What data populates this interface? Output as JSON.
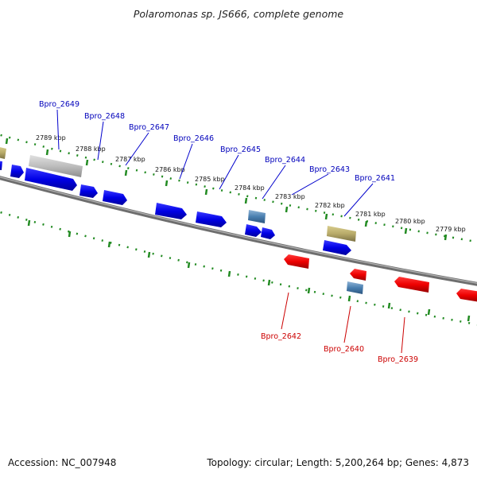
{
  "title": "Polaromonas sp. JS666, complete genome",
  "footer": {
    "accession": "Accession: NC_007948",
    "topology": "Topology: circular; Length: 5,200,264 bp; Genes: 4,873"
  },
  "colors": {
    "forward_gene": "#0000dd",
    "reverse_gene": "#ee0000",
    "backbone": "#777777",
    "ticks": "#228b22",
    "khaki_feature": "#b8ab6a",
    "gray_feature": "#bbbbbb",
    "steel_feature": "#4a7fb0",
    "forward_label": "#0000bb",
    "reverse_label": "#cc0000"
  },
  "kbp_labels": [
    "2789 kbp",
    "2788 kbp",
    "2787 kbp",
    "2786 kbp",
    "2785 kbp",
    "2784 kbp",
    "2783 kbp",
    "2782 kbp",
    "2781 kbp",
    "2780 kbp",
    "2779 kbp"
  ],
  "forward_labels": [
    "Bpro_2649",
    "Bpro_2648",
    "Bpro_2647",
    "Bpro_2646",
    "Bpro_2645",
    "Bpro_2644",
    "Bpro_2643",
    "Bpro_2641"
  ],
  "reverse_labels": [
    "Bpro_2642",
    "Bpro_2640",
    "Bpro_2639"
  ]
}
